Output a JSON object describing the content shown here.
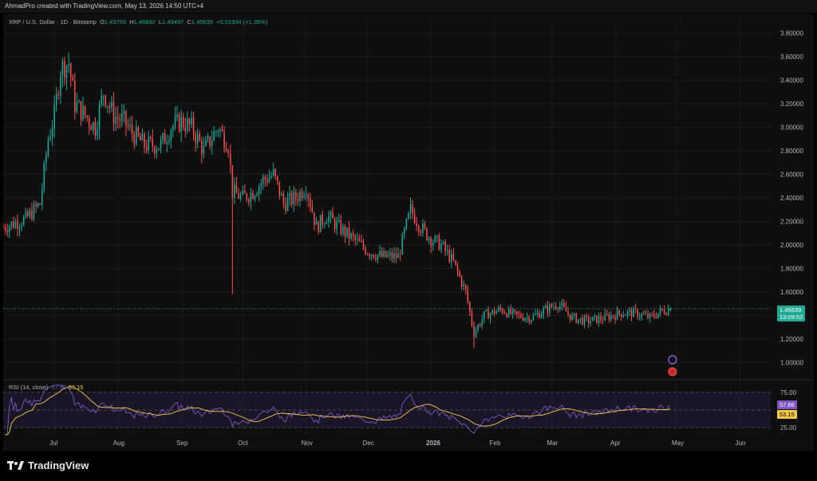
{
  "header": {
    "title": "AhmadPro created with TradingView.com, May 13, 2026 14:50 UTC+4"
  },
  "legend": {
    "symbol": "XRP / U.S. Dollar · 1D · Bitstamp",
    "open_label": "O",
    "open": "1.43759",
    "high_label": "H",
    "high": "1.46892",
    "low_label": "L",
    "low": "1.43497",
    "close_label": "C",
    "close": "1.45639",
    "change": "+0.01934 (+1.35%)"
  },
  "price_tag": {
    "price": "1.45639",
    "countdown": "13:09:52"
  },
  "rsi": {
    "title": "RSI (14, close)",
    "value": "57.66",
    "ma": "53.15",
    "upper": "75.00",
    "lower": "25.00"
  },
  "colors": {
    "up": "#26a69a",
    "down": "#ef5350",
    "rsi_line": "#7e57c2",
    "rsi_ma": "#f2c94c",
    "background": "#0f0f0f"
  },
  "footer": {
    "brand": "TradingView",
    "icon": "tradingview-logo-icon"
  },
  "chart_data": {
    "type": "candlestick",
    "price_axis": [
      "3.80000",
      "3.60000",
      "3.40000",
      "3.20000",
      "3.00000",
      "2.80000",
      "2.60000",
      "2.40000",
      "2.20000",
      "2.00000",
      "1.80000",
      "1.60000",
      "1.40000",
      "1.20000",
      "1.00000"
    ],
    "time_axis": [
      "Jul",
      "Aug",
      "Sep",
      "Oct",
      "Nov",
      "Dec",
      "2026",
      "Feb",
      "Mar",
      "Apr",
      "May",
      "Jun"
    ],
    "ylim": [
      0.88,
      3.9
    ],
    "rsi_ylim": [
      15,
      85
    ],
    "series_close_path": [
      {
        "date": "2025-06-20",
        "close": 2.15
      },
      {
        "date": "2025-07-01",
        "close": 2.22
      },
      {
        "date": "2025-07-08",
        "close": 2.35
      },
      {
        "date": "2025-07-12",
        "close": 2.9
      },
      {
        "date": "2025-07-15",
        "close": 3.1
      },
      {
        "date": "2025-07-18",
        "close": 3.5
      },
      {
        "date": "2025-07-22",
        "close": 3.55
      },
      {
        "date": "2025-07-25",
        "close": 3.2
      },
      {
        "date": "2025-07-30",
        "close": 3.1
      },
      {
        "date": "2025-08-04",
        "close": 3.0
      },
      {
        "date": "2025-08-08",
        "close": 3.3
      },
      {
        "date": "2025-08-13",
        "close": 3.1
      },
      {
        "date": "2025-08-18",
        "close": 3.05
      },
      {
        "date": "2025-08-22",
        "close": 2.95
      },
      {
        "date": "2025-08-28",
        "close": 2.85
      },
      {
        "date": "2025-09-05",
        "close": 2.85
      },
      {
        "date": "2025-09-10",
        "close": 3.0
      },
      {
        "date": "2025-09-15",
        "close": 3.05
      },
      {
        "date": "2025-09-20",
        "close": 3.0
      },
      {
        "date": "2025-09-26",
        "close": 2.8
      },
      {
        "date": "2025-10-03",
        "close": 3.0
      },
      {
        "date": "2025-10-08",
        "close": 2.85
      },
      {
        "date": "2025-10-10",
        "close": 2.45
      },
      {
        "date": "2025-10-15",
        "close": 2.4
      },
      {
        "date": "2025-10-20",
        "close": 2.45
      },
      {
        "date": "2025-10-25",
        "close": 2.55
      },
      {
        "date": "2025-10-30",
        "close": 2.6
      },
      {
        "date": "2025-11-04",
        "close": 2.35
      },
      {
        "date": "2025-11-10",
        "close": 2.4
      },
      {
        "date": "2025-11-15",
        "close": 2.5
      },
      {
        "date": "2025-11-20",
        "close": 2.15
      },
      {
        "date": "2025-11-25",
        "close": 2.25
      },
      {
        "date": "2025-12-01",
        "close": 2.15
      },
      {
        "date": "2025-12-08",
        "close": 2.05
      },
      {
        "date": "2025-12-15",
        "close": 1.95
      },
      {
        "date": "2025-12-22",
        "close": 1.9
      },
      {
        "date": "2025-12-30",
        "close": 1.9
      },
      {
        "date": "2026-01-05",
        "close": 2.3
      },
      {
        "date": "2026-01-10",
        "close": 2.15
      },
      {
        "date": "2026-01-15",
        "close": 2.05
      },
      {
        "date": "2026-01-20",
        "close": 2.0
      },
      {
        "date": "2026-01-26",
        "close": 1.85
      },
      {
        "date": "2026-02-01",
        "close": 1.6
      },
      {
        "date": "2026-02-05",
        "close": 1.25
      },
      {
        "date": "2026-02-10",
        "close": 1.4
      },
      {
        "date": "2026-02-18",
        "close": 1.45
      },
      {
        "date": "2026-02-25",
        "close": 1.4
      },
      {
        "date": "2026-03-05",
        "close": 1.38
      },
      {
        "date": "2026-03-12",
        "close": 1.45
      },
      {
        "date": "2026-03-18",
        "close": 1.5
      },
      {
        "date": "2026-03-25",
        "close": 1.38
      },
      {
        "date": "2026-04-01",
        "close": 1.35
      },
      {
        "date": "2026-04-10",
        "close": 1.38
      },
      {
        "date": "2026-04-18",
        "close": 1.42
      },
      {
        "date": "2026-04-25",
        "close": 1.42
      },
      {
        "date": "2026-05-02",
        "close": 1.38
      },
      {
        "date": "2026-05-08",
        "close": 1.44
      },
      {
        "date": "2026-05-13",
        "close": 1.45639
      }
    ]
  }
}
